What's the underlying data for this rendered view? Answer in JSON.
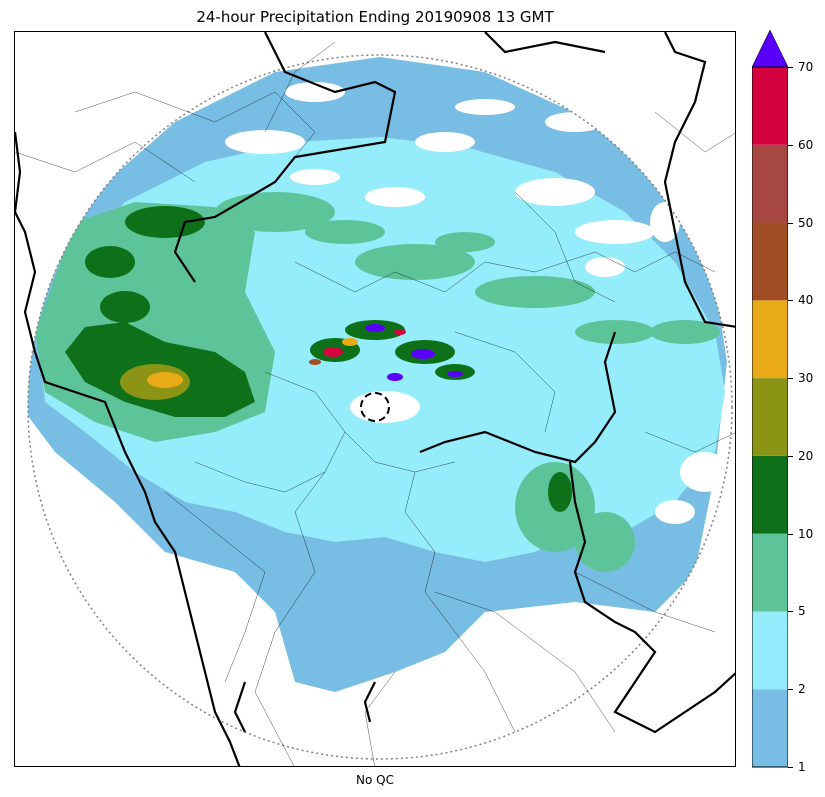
{
  "title": "24-hour Precipitation Ending 20190908 13 GMT",
  "xlabel": "No QC",
  "colorbar": {
    "ticks": [
      "1",
      "2",
      "5",
      "10",
      "20",
      "30",
      "40",
      "50",
      "60",
      "70"
    ],
    "bins": [
      {
        "from": "1",
        "to": "2",
        "color": "#78bde3"
      },
      {
        "from": "2",
        "to": "5",
        "color": "#95ecfb"
      },
      {
        "from": "5",
        "to": "10",
        "color": "#5cc498"
      },
      {
        "from": "10",
        "to": "20",
        "color": "#0e7119"
      },
      {
        "from": "20",
        "to": "30",
        "color": "#8c9416"
      },
      {
        "from": "30",
        "to": "40",
        "color": "#e8aa17"
      },
      {
        "from": "40",
        "to": "50",
        "color": "#a14d26"
      },
      {
        "from": "50",
        "to": "60",
        "color": "#a64741"
      },
      {
        "from": "60",
        "to": "70",
        "color": "#d4013e"
      }
    ],
    "extend_color": "#5800fa"
  },
  "legend_colors": {
    "range_ring": "#808080",
    "coast_border": "#000000"
  }
}
